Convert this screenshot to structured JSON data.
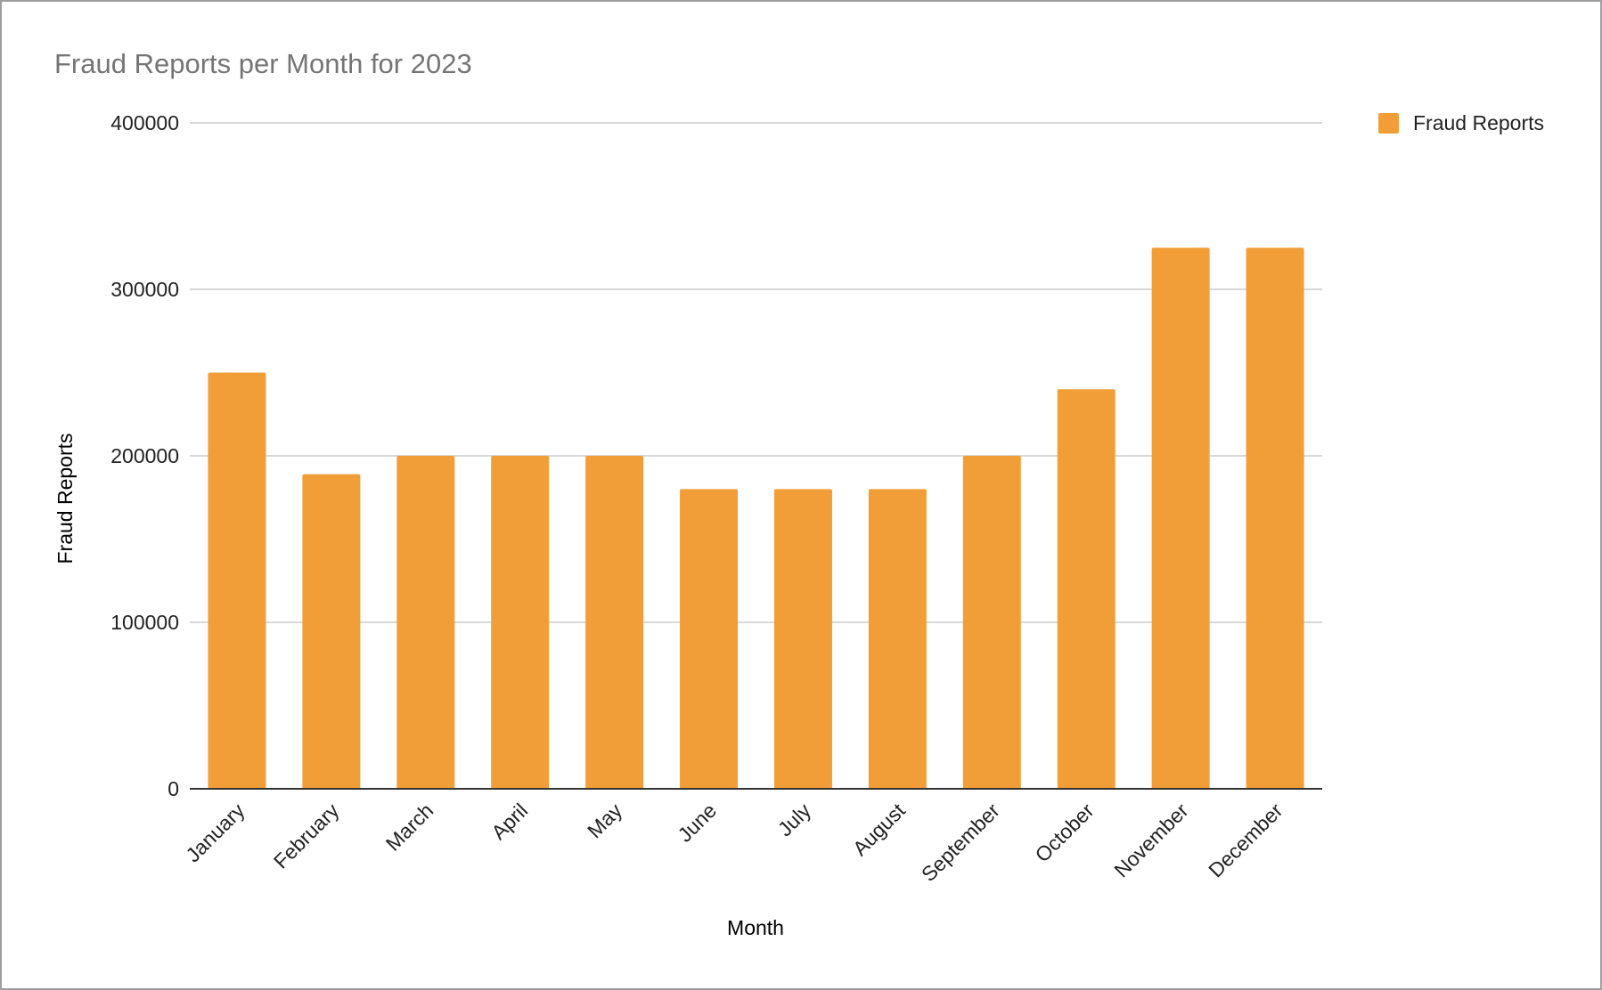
{
  "chart_data": {
    "type": "bar",
    "title": "Fraud Reports per Month for 2023",
    "xlabel": "Month",
    "ylabel": "Fraud Reports",
    "categories": [
      "January",
      "February",
      "March",
      "April",
      "May",
      "June",
      "July",
      "August",
      "September",
      "October",
      "November",
      "December"
    ],
    "series": [
      {
        "name": "Fraud Reports",
        "color": "#f29e38",
        "values": [
          250000,
          189000,
          200000,
          200000,
          200000,
          180000,
          180000,
          180000,
          200000,
          240000,
          325000,
          325000
        ]
      }
    ],
    "ylim": [
      0,
      400000
    ],
    "yticks": [
      "0",
      "100000",
      "200000",
      "300000",
      "400000"
    ],
    "grid": true,
    "legend_position": "top-right"
  }
}
